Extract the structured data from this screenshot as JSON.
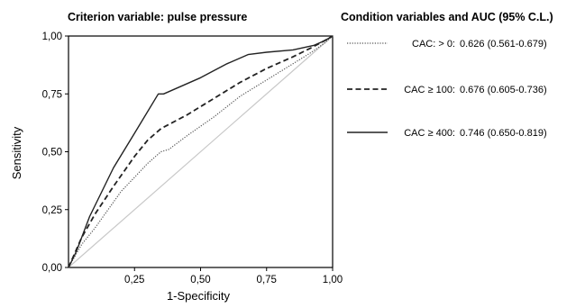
{
  "chart_data": {
    "type": "line",
    "title": "Criterion variable: pulse pressure",
    "legend_title": "Condition variables and AUC (95% C.L.)",
    "xlabel": "1-Specificity",
    "ylabel": "Sensitivity",
    "xlim": [
      0,
      1
    ],
    "ylim": [
      0,
      1
    ],
    "xticks": [
      "0,25",
      "0,50",
      "0,75",
      "1,00"
    ],
    "xtick_values": [
      0.25,
      0.5,
      0.75,
      1.0
    ],
    "yticks": [
      "0,00",
      "0,25",
      "0,50",
      "0,75",
      "1,00"
    ],
    "ytick_values": [
      0,
      0.25,
      0.5,
      0.75,
      1.0
    ],
    "grid": false,
    "legend_position": "right",
    "reference_line": {
      "x": [
        0,
        1
      ],
      "y": [
        0,
        1
      ],
      "color": "#c8c8c8"
    },
    "series": [
      {
        "name": "CAC: > 0:",
        "auc": "0.626 (0.561-0.679)",
        "style": "dotted",
        "color": "#555555",
        "x": [
          0,
          0.05,
          0.1,
          0.15,
          0.2,
          0.25,
          0.3,
          0.35,
          0.38,
          0.45,
          0.55,
          0.65,
          0.75,
          0.85,
          0.92,
          0.97,
          1.0
        ],
        "y": [
          0,
          0.1,
          0.17,
          0.25,
          0.33,
          0.39,
          0.45,
          0.5,
          0.51,
          0.57,
          0.65,
          0.74,
          0.81,
          0.88,
          0.93,
          0.97,
          1.0
        ]
      },
      {
        "name": "CAC ≥ 100:",
        "auc": "0.676 (0.605-0.736)",
        "style": "dashed",
        "color": "#222222",
        "x": [
          0,
          0.05,
          0.1,
          0.17,
          0.25,
          0.3,
          0.35,
          0.45,
          0.55,
          0.65,
          0.75,
          0.85,
          0.92,
          0.97,
          1.0
        ],
        "y": [
          0,
          0.13,
          0.23,
          0.35,
          0.48,
          0.55,
          0.6,
          0.66,
          0.73,
          0.8,
          0.86,
          0.91,
          0.95,
          0.98,
          1.0
        ]
      },
      {
        "name": "CAC ≥ 400:",
        "auc": "0.746 (0.650-0.819)",
        "style": "solid",
        "color": "#222222",
        "x": [
          0,
          0.03,
          0.08,
          0.17,
          0.25,
          0.34,
          0.36,
          0.5,
          0.6,
          0.68,
          0.75,
          0.85,
          0.93,
          0.97,
          1.0
        ],
        "y": [
          0,
          0.07,
          0.22,
          0.43,
          0.58,
          0.75,
          0.75,
          0.82,
          0.88,
          0.92,
          0.93,
          0.94,
          0.96,
          0.98,
          1.0
        ]
      }
    ]
  }
}
